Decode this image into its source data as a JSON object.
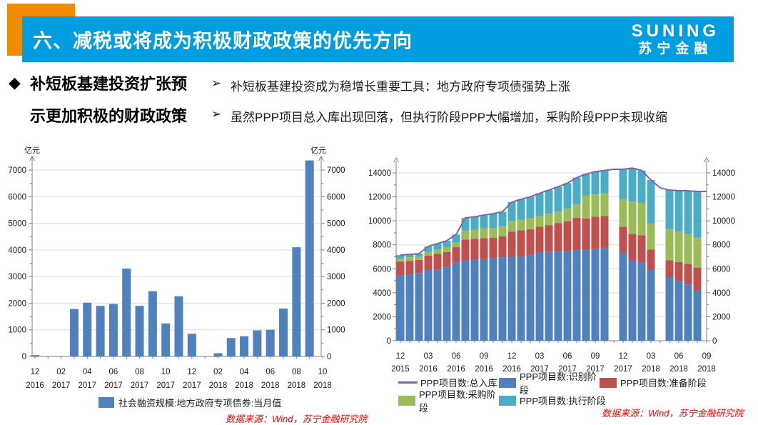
{
  "header": {
    "title": "六、减税或将成为积极财政政策的优先方向",
    "logo_line1": "SUNING",
    "logo_line2": "苏宁金融",
    "bar_color": "#009EE0",
    "accent_color": "#F18C00"
  },
  "bullets": {
    "diamond": "◆",
    "heading_line1": "补短板基建投资扩张预",
    "heading_line2": "示更加积极的财政政策",
    "arrow": "➢",
    "item1": "补短板基建投资成为稳增长重要工具：地方政府专项债强势上涨",
    "item2": "虽然PPP项目总入库出现回落，但执行阶段PPP大幅增加，采购阶段PPP未现收缩"
  },
  "sources": {
    "left": "数据来源：Wind，苏宁金融研究院",
    "right": "数据来源：Wind，苏宁金融研究院"
  },
  "chart_data": [
    {
      "type": "bar",
      "title": "",
      "unit_label": "亿元",
      "legend": "社会融资规模:地方政府专项债券:当月值",
      "color": "#4F81BD",
      "ylim": [
        0,
        7000
      ],
      "ytick_step": 1000,
      "grid": true,
      "categories": [
        "2016-12",
        "2017-01",
        "2017-02",
        "2017-03",
        "2017-04",
        "2017-05",
        "2017-06",
        "2017-07",
        "2017-08",
        "2017-09",
        "2017-10",
        "2017-11",
        "2017-12",
        "2018-01",
        "2018-02",
        "2018-03",
        "2018-04",
        "2018-05",
        "2018-06",
        "2018-07",
        "2018-08",
        "2018-09",
        "2018-10"
      ],
      "values": [
        50,
        0,
        0,
        1780,
        2020,
        1900,
        1970,
        3300,
        1900,
        2450,
        1240,
        2260,
        850,
        0,
        120,
        690,
        760,
        980,
        1000,
        1800,
        4100,
        7360,
        0
      ],
      "x_ticks": [
        [
          "12",
          "2016"
        ],
        [
          "02",
          "2017"
        ],
        [
          "04",
          "2017"
        ],
        [
          "06",
          "2017"
        ],
        [
          "08",
          "2017"
        ],
        [
          "10",
          "2017"
        ],
        [
          "12",
          "2017"
        ],
        [
          "02",
          "2018"
        ],
        [
          "04",
          "2018"
        ],
        [
          "06",
          "2018"
        ],
        [
          "08",
          "2018"
        ],
        [
          "10",
          "2018"
        ]
      ]
    },
    {
      "type": "stacked-bar-line",
      "title": "",
      "ylim": [
        0,
        14000
      ],
      "ytick_step": 2000,
      "grid": true,
      "legend_position": "bottom",
      "categories": [
        "2015-12",
        "2016-01",
        "2016-02",
        "2016-03",
        "2016-04",
        "2016-05",
        "2016-06",
        "2016-07",
        "2016-08",
        "2016-09",
        "2016-10",
        "2016-11",
        "2016-12",
        "2017-01",
        "2017-02",
        "2017-03",
        "2017-04",
        "2017-05",
        "2017-06",
        "2017-07",
        "2017-08",
        "2017-09",
        "2017-10",
        "2017-11",
        "2017-12",
        "2018-01",
        "2018-02",
        "2018-03",
        "2018-04",
        "2018-05",
        "2018-06",
        "2018-07",
        "2018-08",
        "2018-09"
      ],
      "series": [
        {
          "name": "PPP项目数:识别阶段",
          "color": "#4F81BD",
          "values": [
            5460,
            5600,
            5640,
            5900,
            5950,
            6150,
            6550,
            6700,
            6760,
            6800,
            6900,
            6960,
            7000,
            7060,
            7100,
            7360,
            7400,
            7440,
            7500,
            7560,
            7600,
            7640,
            7700,
            null,
            7300,
            6700,
            6500,
            5900,
            null,
            5300,
            5000,
            4700,
            4200,
            null
          ]
        },
        {
          "name": "PPP项目数:准备阶段",
          "color": "#C0504D",
          "values": [
            1140,
            1040,
            1100,
            1200,
            1300,
            1250,
            1250,
            1740,
            1740,
            1760,
            1700,
            1740,
            2100,
            2140,
            2200,
            2140,
            2240,
            2360,
            2460,
            2700,
            2600,
            2700,
            2700,
            null,
            2200,
            2200,
            2300,
            1700,
            null,
            1400,
            1560,
            1700,
            1900,
            null
          ]
        },
        {
          "name": "PPP项目数:采购阶段",
          "color": "#9BBB59",
          "values": [
            240,
            320,
            280,
            300,
            350,
            400,
            400,
            720,
            740,
            800,
            800,
            860,
            900,
            900,
            900,
            900,
            960,
            960,
            1040,
            1100,
            1900,
            1860,
            1900,
            null,
            2300,
            2700,
            2700,
            2200,
            null,
            2600,
            2540,
            2500,
            2500,
            null
          ]
        },
        {
          "name": "PPP项目数:执行阶段",
          "color": "#4BACC6",
          "values": [
            300,
            240,
            240,
            460,
            500,
            540,
            660,
            1080,
            1100,
            1120,
            1200,
            1200,
            1560,
            1700,
            1800,
            1900,
            1960,
            2080,
            2140,
            2240,
            1800,
            1900,
            1900,
            null,
            2500,
            2800,
            2700,
            3600,
            null,
            3260,
            3420,
            3600,
            3850,
            null
          ]
        }
      ],
      "line": {
        "name": "PPP项目数:总入库",
        "color": "#8064A2",
        "values": [
          7140,
          7200,
          7260,
          7860,
          8100,
          8340,
          8860,
          10240,
          10340,
          10480,
          10600,
          10760,
          11560,
          11800,
          12000,
          12300,
          12560,
          12840,
          13140,
          13600,
          13900,
          14100,
          14200,
          14300,
          14300,
          14400,
          14200,
          13400,
          12750,
          12560,
          12520,
          12500,
          12450,
          12450
        ]
      },
      "x_ticks": [
        [
          "12",
          "2015"
        ],
        [
          "03",
          "2016"
        ],
        [
          "06",
          "2016"
        ],
        [
          "09",
          "2016"
        ],
        [
          "12",
          "2016"
        ],
        [
          "03",
          "2017"
        ],
        [
          "06",
          "2017"
        ],
        [
          "09",
          "2017"
        ],
        [
          "12",
          "2017"
        ],
        [
          "03",
          "2018"
        ],
        [
          "06",
          "2018"
        ],
        [
          "09",
          "2018"
        ]
      ]
    }
  ]
}
